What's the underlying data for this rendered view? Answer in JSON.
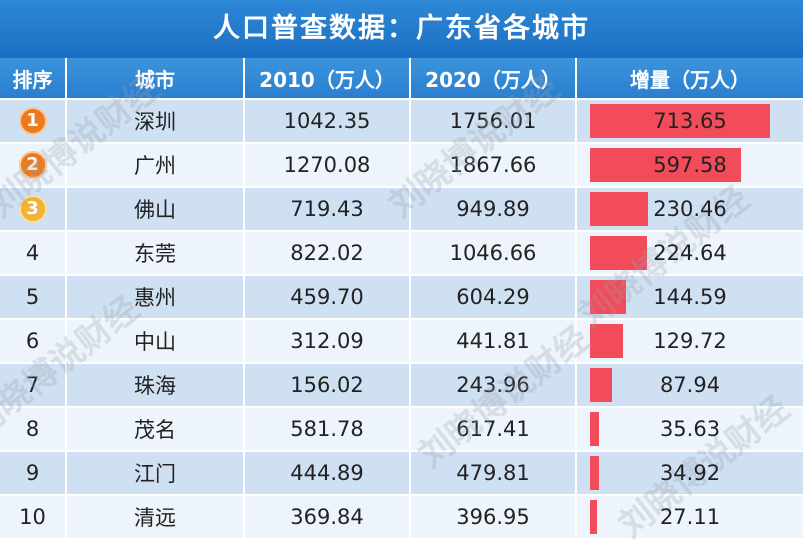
{
  "title": "人口普查数据：广东省各城市",
  "headers": [
    "排序",
    "城市",
    "2010（万人）",
    "2020（万人）",
    "增量（万人）"
  ],
  "colors": {
    "bar": "#f24b5a",
    "medal_gold": "#f2b233",
    "medal_orange": "#ea7a1c"
  },
  "watermark": "刘晓博说财经",
  "rows": [
    {
      "rank": "1",
      "medal": "orange",
      "city": "深圳",
      "y2010": "1042.35",
      "y2020": "1756.01",
      "increase": "713.65",
      "inc": 713.65
    },
    {
      "rank": "2",
      "medal": "orange",
      "city": "广州",
      "y2010": "1270.08",
      "y2020": "1867.66",
      "increase": "597.58",
      "inc": 597.58
    },
    {
      "rank": "3",
      "medal": "gold",
      "city": "佛山",
      "y2010": "719.43",
      "y2020": "949.89",
      "increase": "230.46",
      "inc": 230.46
    },
    {
      "rank": "4",
      "city": "东莞",
      "y2010": "822.02",
      "y2020": "1046.66",
      "increase": "224.64",
      "inc": 224.64
    },
    {
      "rank": "5",
      "city": "惠州",
      "y2010": "459.70",
      "y2020": "604.29",
      "increase": "144.59",
      "inc": 144.59
    },
    {
      "rank": "6",
      "city": "中山",
      "y2010": "312.09",
      "y2020": "441.81",
      "increase": "129.72",
      "inc": 129.72
    },
    {
      "rank": "7",
      "city": "珠海",
      "y2010": "156.02",
      "y2020": "243.96",
      "increase": "87.94",
      "inc": 87.94
    },
    {
      "rank": "8",
      "city": "茂名",
      "y2010": "581.78",
      "y2020": "617.41",
      "increase": "35.63",
      "inc": 35.63
    },
    {
      "rank": "9",
      "city": "江门",
      "y2010": "444.89",
      "y2020": "479.81",
      "increase": "34.92",
      "inc": 34.92
    },
    {
      "rank": "10",
      "city": "清远",
      "y2010": "369.84",
      "y2020": "396.95",
      "increase": "27.11",
      "inc": 27.11
    }
  ]
}
